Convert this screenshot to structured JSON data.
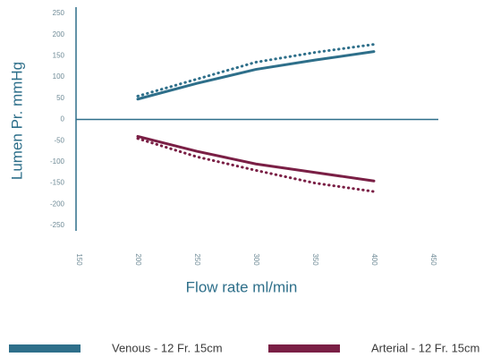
{
  "chart_data": {
    "type": "line",
    "x_label": "Flow rate ml/min",
    "y_label": "Lumen Pr. mmHg",
    "x": [
      200,
      250,
      300,
      350,
      400
    ],
    "series": [
      {
        "name": "Venous - 12 Fr. 15cm",
        "color": "#2e6f8a",
        "linestyle": "solid",
        "values": [
          48,
          85,
          118,
          140,
          160
        ]
      },
      {
        "color": "#2e6f8a",
        "linestyle": "dotted",
        "values": [
          55,
          95,
          135,
          158,
          177
        ]
      },
      {
        "name": "Arterial - 12 Fr. 15cm",
        "color": "#7a1f45",
        "linestyle": "solid",
        "values": [
          -40,
          -75,
          -105,
          -125,
          -145
        ]
      },
      {
        "color": "#7a1f45",
        "linestyle": "dotted",
        "values": [
          -45,
          -88,
          -120,
          -150,
          -170
        ]
      }
    ],
    "xlim": [
      150,
      450
    ],
    "xticks": [
      150,
      200,
      250,
      300,
      350,
      400,
      450
    ],
    "ylim": [
      -250,
      250
    ],
    "yticks": [
      -250,
      -200,
      -150,
      -100,
      -50,
      0,
      50,
      100,
      150,
      200,
      250
    ],
    "grid": false
  }
}
